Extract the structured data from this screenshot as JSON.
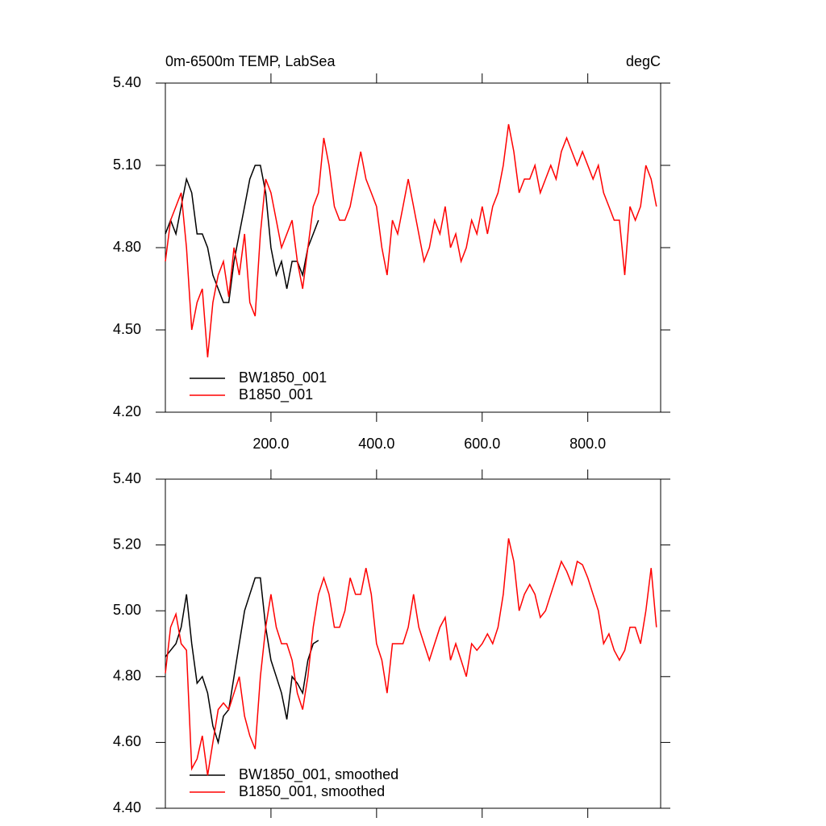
{
  "chart_data": [
    {
      "type": "line",
      "title": "0m-6500m TEMP, LabSea",
      "units": "degC",
      "x": [
        0,
        10,
        20,
        30,
        40,
        50,
        60,
        70,
        80,
        90,
        100,
        110,
        120,
        130,
        140,
        150,
        160,
        170,
        180,
        190,
        200,
        210,
        220,
        230,
        240,
        250,
        260,
        270,
        280,
        290,
        300,
        310,
        320,
        330,
        340,
        350,
        360,
        370,
        380,
        390,
        400,
        410,
        420,
        430,
        440,
        450,
        460,
        470,
        480,
        490,
        500,
        510,
        520,
        530,
        540,
        550,
        560,
        570,
        580,
        590,
        600,
        610,
        620,
        630,
        640,
        650,
        660,
        670,
        680,
        690,
        700,
        710,
        720,
        730,
        740,
        750,
        760,
        770,
        780,
        790,
        800,
        810,
        820,
        830,
        840,
        850,
        860,
        870,
        880,
        890,
        900,
        910,
        920,
        930
      ],
      "xlim": [
        0,
        938
      ],
      "xticks": [
        {
          "value": 200,
          "label": "200.0"
        },
        {
          "value": 400,
          "label": "400.0"
        },
        {
          "value": 600,
          "label": "600.0"
        },
        {
          "value": 800,
          "label": "800.0"
        }
      ],
      "ylim": [
        4.2,
        5.4
      ],
      "yticks": [
        {
          "value": 4.2,
          "label": "4.20"
        },
        {
          "value": 4.5,
          "label": "4.50"
        },
        {
          "value": 4.8,
          "label": "4.80"
        },
        {
          "value": 5.1,
          "label": "5.10"
        },
        {
          "value": 5.4,
          "label": "5.40"
        }
      ],
      "series": [
        {
          "name": "BW1850_001",
          "color": "#000000",
          "values": [
            4.85,
            4.9,
            4.85,
            4.95,
            5.05,
            5.0,
            4.85,
            4.85,
            4.8,
            4.7,
            4.65,
            4.6,
            4.6,
            4.75,
            4.85,
            4.95,
            5.05,
            5.1,
            5.1,
            5.0,
            4.8,
            4.7,
            4.75,
            4.65,
            4.75,
            4.75,
            4.7,
            4.8,
            4.85,
            4.9,
            null,
            null,
            null,
            null,
            null,
            null,
            null,
            null,
            null,
            null,
            null,
            null,
            null,
            null,
            null,
            null,
            null,
            null,
            null,
            null,
            null,
            null,
            null,
            null,
            null,
            null,
            null,
            null,
            null,
            null,
            null,
            null,
            null,
            null,
            null,
            null,
            null,
            null,
            null,
            null,
            null,
            null,
            null,
            null,
            null,
            null,
            null,
            null,
            null,
            null,
            null,
            null,
            null,
            null,
            null,
            null,
            null,
            null,
            null,
            null,
            null,
            null,
            null,
            null
          ]
        },
        {
          "name": "B1850_001",
          "color": "#ff0000",
          "values": [
            4.75,
            4.9,
            4.95,
            5.0,
            4.8,
            4.5,
            4.6,
            4.65,
            4.4,
            4.6,
            4.7,
            4.75,
            4.62,
            4.8,
            4.7,
            4.85,
            4.6,
            4.55,
            4.85,
            5.05,
            5.0,
            4.9,
            4.8,
            4.85,
            4.9,
            4.75,
            4.65,
            4.8,
            4.95,
            5.0,
            5.2,
            5.1,
            4.95,
            4.9,
            4.9,
            4.95,
            5.05,
            5.15,
            5.05,
            5.0,
            4.95,
            4.8,
            4.7,
            4.9,
            4.85,
            4.95,
            5.05,
            4.95,
            4.85,
            4.75,
            4.8,
            4.9,
            4.85,
            4.95,
            4.8,
            4.85,
            4.75,
            4.8,
            4.9,
            4.85,
            4.95,
            4.85,
            4.95,
            5.0,
            5.1,
            5.25,
            5.15,
            5.0,
            5.05,
            5.05,
            5.1,
            5.0,
            5.05,
            5.1,
            5.05,
            5.15,
            5.2,
            5.15,
            5.1,
            5.15,
            5.1,
            5.05,
            5.1,
            5.0,
            4.95,
            4.9,
            4.9,
            4.7,
            4.95,
            4.9,
            4.95,
            5.1,
            5.05,
            4.95
          ]
        }
      ]
    },
    {
      "type": "line",
      "x": [
        0,
        10,
        20,
        30,
        40,
        50,
        60,
        70,
        80,
        90,
        100,
        110,
        120,
        130,
        140,
        150,
        160,
        170,
        180,
        190,
        200,
        210,
        220,
        230,
        240,
        250,
        260,
        270,
        280,
        290,
        300,
        310,
        320,
        330,
        340,
        350,
        360,
        370,
        380,
        390,
        400,
        410,
        420,
        430,
        440,
        450,
        460,
        470,
        480,
        490,
        500,
        510,
        520,
        530,
        540,
        550,
        560,
        570,
        580,
        590,
        600,
        610,
        620,
        630,
        640,
        650,
        660,
        670,
        680,
        690,
        700,
        710,
        720,
        730,
        740,
        750,
        760,
        770,
        780,
        790,
        800,
        810,
        820,
        830,
        840,
        850,
        860,
        870,
        880,
        890,
        900,
        910,
        920,
        930
      ],
      "xlim": [
        0,
        938
      ],
      "xticks": [
        200,
        400,
        600,
        800
      ],
      "ylim": [
        4.4,
        5.4
      ],
      "yticks": [
        {
          "value": 4.4,
          "label": "4.40"
        },
        {
          "value": 4.6,
          "label": "4.60"
        },
        {
          "value": 4.8,
          "label": "4.80"
        },
        {
          "value": 5.0,
          "label": "5.00"
        },
        {
          "value": 5.2,
          "label": "5.20"
        },
        {
          "value": 5.4,
          "label": "5.40"
        }
      ],
      "series": [
        {
          "name": "BW1850_001, smoothed",
          "color": "#000000",
          "values": [
            4.86,
            4.88,
            4.9,
            4.95,
            5.05,
            4.9,
            4.78,
            4.8,
            4.75,
            4.65,
            4.6,
            4.68,
            4.7,
            4.8,
            4.9,
            5.0,
            5.05,
            5.1,
            5.1,
            4.95,
            4.85,
            4.8,
            4.75,
            4.67,
            4.8,
            4.78,
            4.75,
            4.85,
            4.9,
            4.91,
            null,
            null,
            null,
            null,
            null,
            null,
            null,
            null,
            null,
            null,
            null,
            null,
            null,
            null,
            null,
            null,
            null,
            null,
            null,
            null,
            null,
            null,
            null,
            null,
            null,
            null,
            null,
            null,
            null,
            null,
            null,
            null,
            null,
            null,
            null,
            null,
            null,
            null,
            null,
            null,
            null,
            null,
            null,
            null,
            null,
            null,
            null,
            null,
            null,
            null,
            null,
            null,
            null,
            null,
            null,
            null,
            null,
            null,
            null,
            null,
            null,
            null,
            null,
            null
          ]
        },
        {
          "name": "B1850_001, smoothed",
          "color": "#ff0000",
          "values": [
            4.81,
            4.95,
            4.99,
            4.9,
            4.88,
            4.52,
            4.55,
            4.62,
            4.5,
            4.6,
            4.7,
            4.72,
            4.7,
            4.75,
            4.8,
            4.68,
            4.62,
            4.58,
            4.8,
            4.95,
            5.05,
            4.95,
            4.9,
            4.9,
            4.85,
            4.75,
            4.7,
            4.8,
            4.95,
            5.05,
            5.1,
            5.05,
            4.95,
            4.95,
            5.0,
            5.1,
            5.05,
            5.05,
            5.13,
            5.05,
            4.9,
            4.85,
            4.75,
            4.9,
            4.9,
            4.9,
            4.95,
            5.05,
            4.95,
            4.9,
            4.85,
            4.9,
            4.95,
            4.98,
            4.85,
            4.9,
            4.85,
            4.8,
            4.9,
            4.88,
            4.9,
            4.93,
            4.9,
            4.95,
            5.05,
            5.22,
            5.15,
            5.0,
            5.05,
            5.08,
            5.05,
            4.98,
            5.0,
            5.05,
            5.1,
            5.15,
            5.12,
            5.08,
            5.15,
            5.14,
            5.1,
            5.05,
            5.0,
            4.9,
            4.93,
            4.88,
            4.85,
            4.88,
            4.95,
            4.95,
            4.9,
            5.0,
            5.13,
            4.95
          ]
        }
      ]
    }
  ]
}
